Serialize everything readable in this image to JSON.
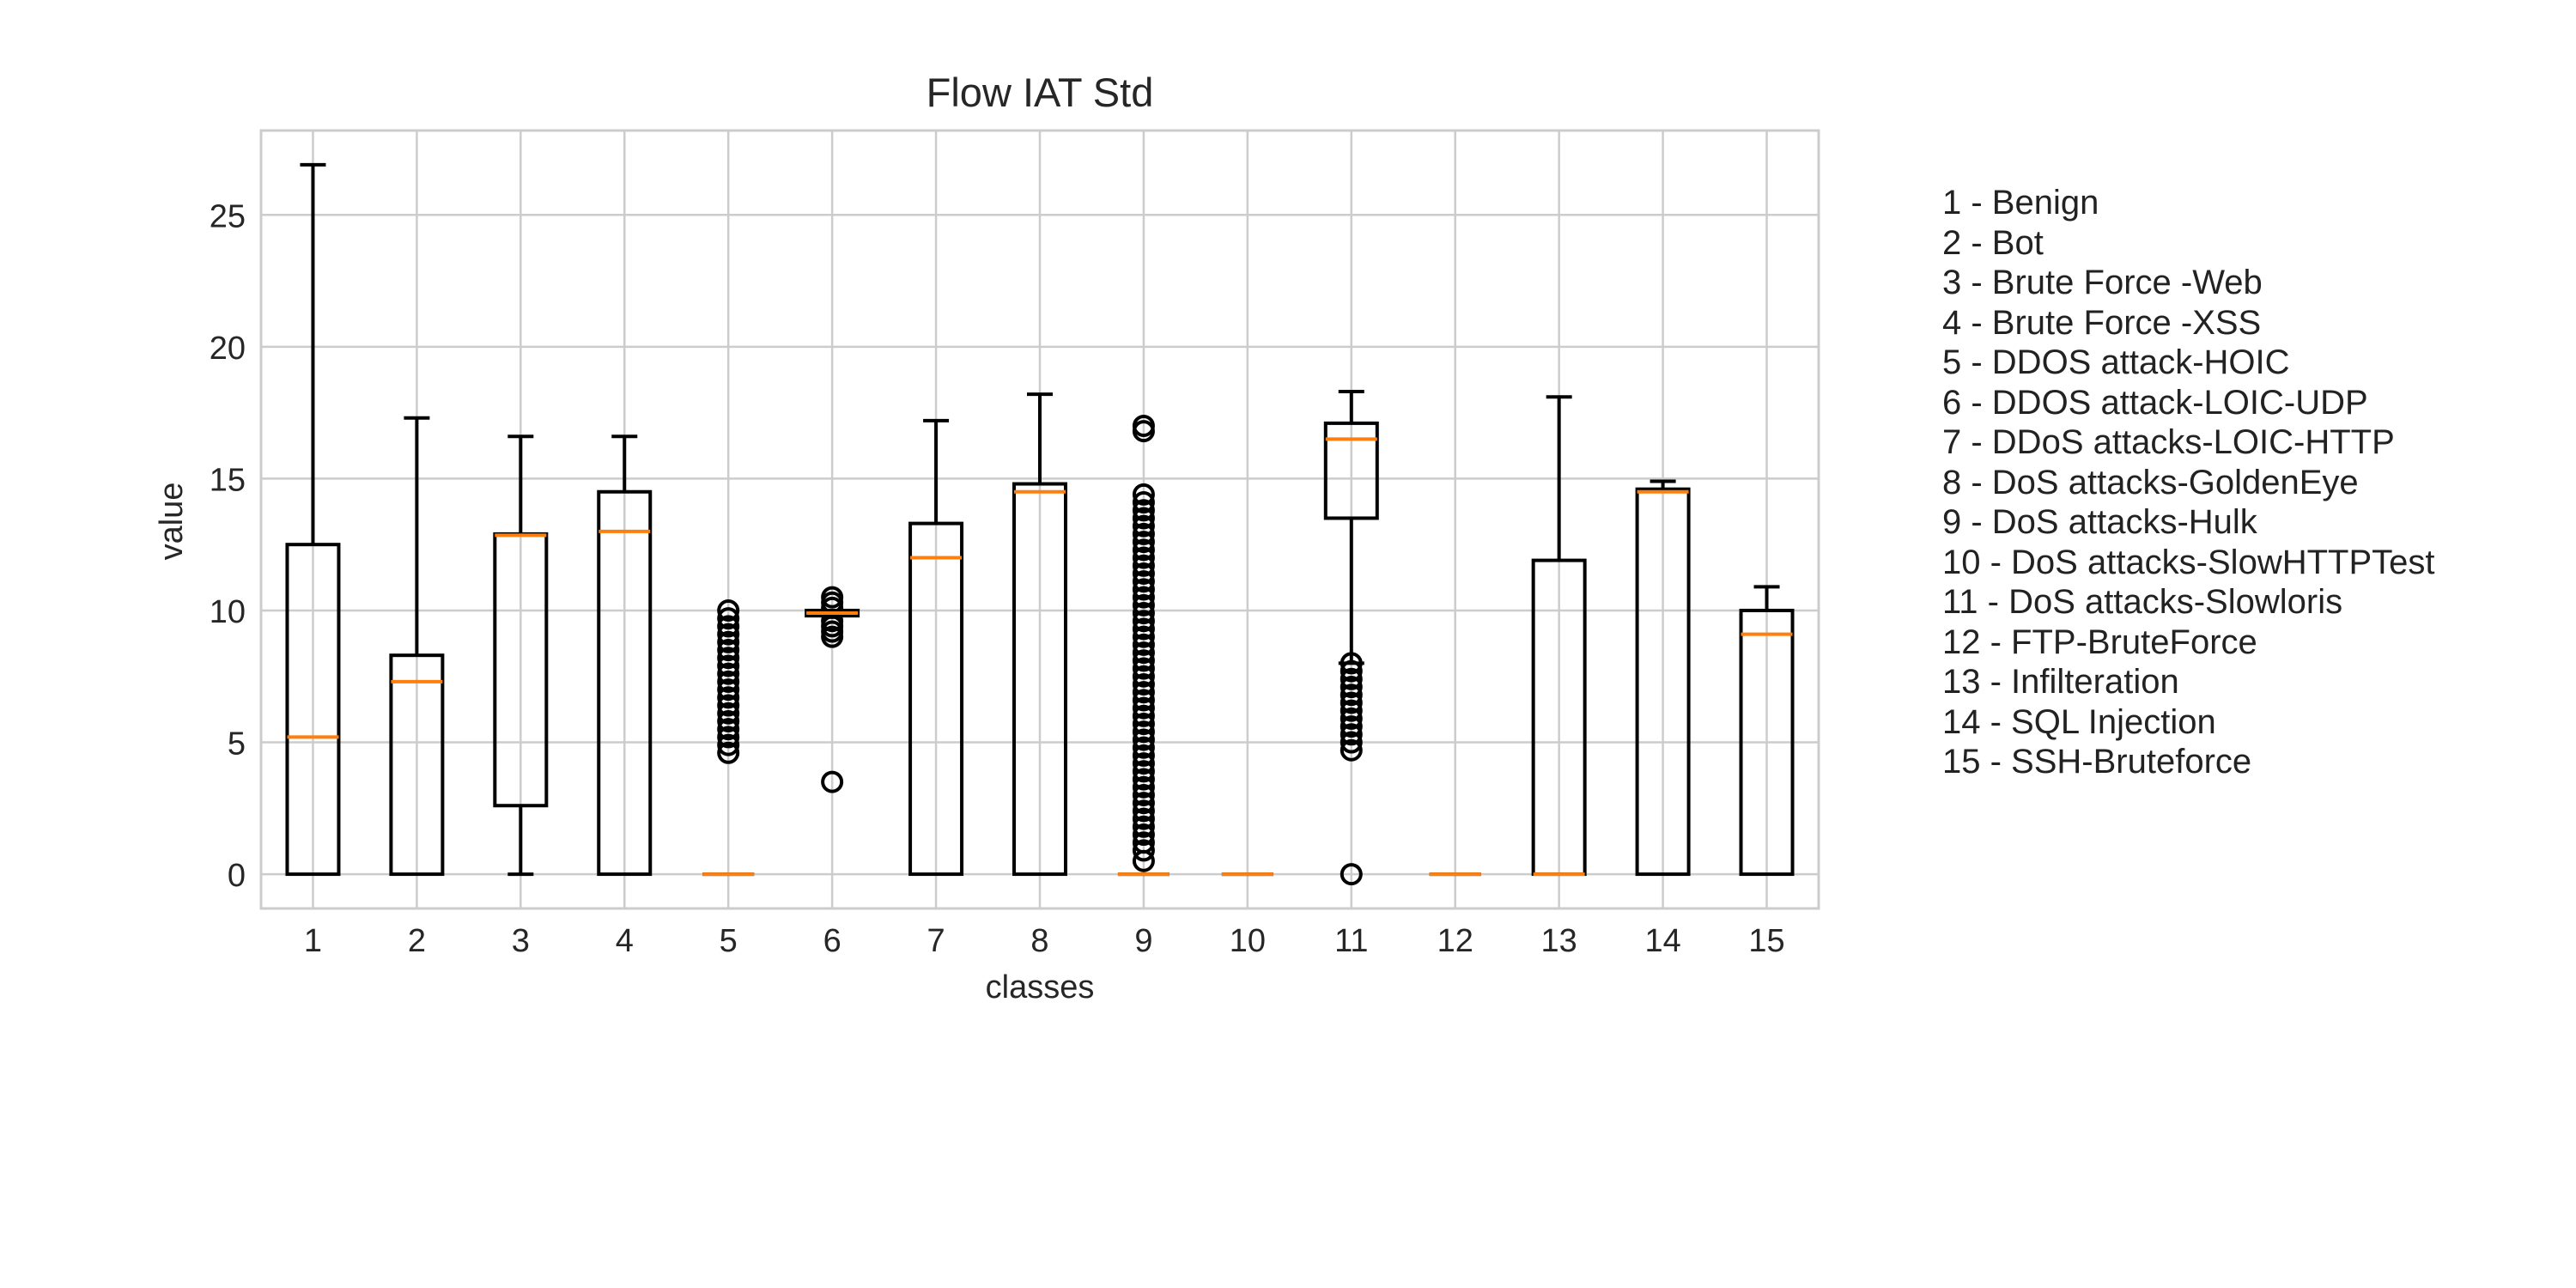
{
  "chart_data": {
    "type": "box",
    "title": "Flow IAT Std",
    "xlabel": "classes",
    "ylabel": "value",
    "ylim": [
      -1.3,
      28.2
    ],
    "yticks": [
      0,
      5,
      10,
      15,
      20,
      25
    ],
    "grid": true,
    "categories": [
      "1",
      "2",
      "3",
      "4",
      "5",
      "6",
      "7",
      "8",
      "9",
      "10",
      "11",
      "12",
      "13",
      "14",
      "15"
    ],
    "boxes": [
      {
        "q1": 0,
        "median": 5.2,
        "q3": 12.5,
        "whisker_low": 0,
        "whisker_high": 26.9,
        "outliers": []
      },
      {
        "q1": 0,
        "median": 7.3,
        "q3": 8.3,
        "whisker_low": 0,
        "whisker_high": 17.3,
        "outliers": []
      },
      {
        "q1": 2.6,
        "median": 12.85,
        "q3": 12.9,
        "whisker_low": 0,
        "whisker_high": 16.6,
        "outliers": []
      },
      {
        "q1": 0,
        "median": 13.0,
        "q3": 14.5,
        "whisker_low": 0,
        "whisker_high": 16.6,
        "outliers": []
      },
      {
        "q1": 0,
        "median": 0,
        "q3": 0,
        "whisker_low": 0,
        "whisker_high": 0,
        "outliers": [
          4.6,
          4.9,
          5.2,
          5.5,
          5.8,
          6.1,
          6.4,
          6.7,
          7.0,
          7.3,
          7.6,
          7.9,
          8.2,
          8.5,
          8.8,
          9.1,
          9.4,
          9.7,
          10.0
        ]
      },
      {
        "q1": 9.8,
        "median": 9.9,
        "q3": 10.0,
        "whisker_low": 9.8,
        "whisker_high": 10.0,
        "outliers": [
          3.5,
          9.0,
          9.2,
          9.4,
          9.6,
          10.1,
          10.3,
          10.5
        ]
      },
      {
        "q1": 0,
        "median": 12.0,
        "q3": 13.3,
        "whisker_low": 0,
        "whisker_high": 17.2,
        "outliers": []
      },
      {
        "q1": 0,
        "median": 14.5,
        "q3": 14.8,
        "whisker_low": 0,
        "whisker_high": 18.2,
        "outliers": []
      },
      {
        "q1": 0,
        "median": 0,
        "q3": 0,
        "whisker_low": 0,
        "whisker_high": 0,
        "outliers": [
          0.5,
          0.9,
          1.2,
          1.5,
          1.8,
          2.1,
          2.4,
          2.7,
          3.0,
          3.3,
          3.6,
          3.9,
          4.2,
          4.5,
          4.8,
          5.1,
          5.4,
          5.7,
          6.0,
          6.3,
          6.6,
          6.9,
          7.2,
          7.5,
          7.8,
          8.1,
          8.4,
          8.7,
          9.0,
          9.3,
          9.6,
          9.9,
          10.2,
          10.5,
          10.8,
          11.1,
          11.4,
          11.7,
          12.0,
          12.3,
          12.6,
          12.9,
          13.2,
          13.5,
          13.8,
          14.1,
          14.4,
          16.8,
          17.0
        ]
      },
      {
        "q1": 0,
        "median": 0,
        "q3": 0,
        "whisker_low": 0,
        "whisker_high": 0,
        "outliers": []
      },
      {
        "q1": 13.5,
        "median": 16.5,
        "q3": 17.1,
        "whisker_low": 8.0,
        "whisker_high": 18.3,
        "outliers": [
          0,
          4.7,
          5.0,
          5.3,
          5.6,
          5.9,
          6.2,
          6.5,
          6.8,
          7.1,
          7.4,
          7.7,
          8.0
        ]
      },
      {
        "q1": 0,
        "median": 0,
        "q3": 0,
        "whisker_low": 0,
        "whisker_high": 0,
        "outliers": []
      },
      {
        "q1": 0,
        "median": 0,
        "q3": 11.9,
        "whisker_low": 0,
        "whisker_high": 18.1,
        "outliers": []
      },
      {
        "q1": 0,
        "median": 14.5,
        "q3": 14.6,
        "whisker_low": 0,
        "whisker_high": 14.9,
        "outliers": []
      },
      {
        "q1": 0,
        "median": 9.1,
        "q3": 10.0,
        "whisker_low": 0,
        "whisker_high": 10.9,
        "outliers": []
      }
    ],
    "legend": [
      "1 - Benign",
      "2 - Bot",
      "3 - Brute Force -Web",
      "4 - Brute Force -XSS",
      "5 - DDOS attack-HOIC",
      "6 - DDOS attack-LOIC-UDP",
      "7 - DDoS attacks-LOIC-HTTP",
      "8 - DoS attacks-GoldenEye",
      "9 - DoS attacks-Hulk",
      "10 - DoS attacks-SlowHTTPTest",
      "11 - DoS attacks-Slowloris",
      "12 - FTP-BruteForce",
      "13 - Infilteration",
      "14 - SQL Injection",
      "15 - SSH-Bruteforce"
    ],
    "colors": {
      "box": "#000000",
      "median": "#ff7f0e",
      "grid": "#cccccc",
      "frame": "#cccccc"
    }
  }
}
